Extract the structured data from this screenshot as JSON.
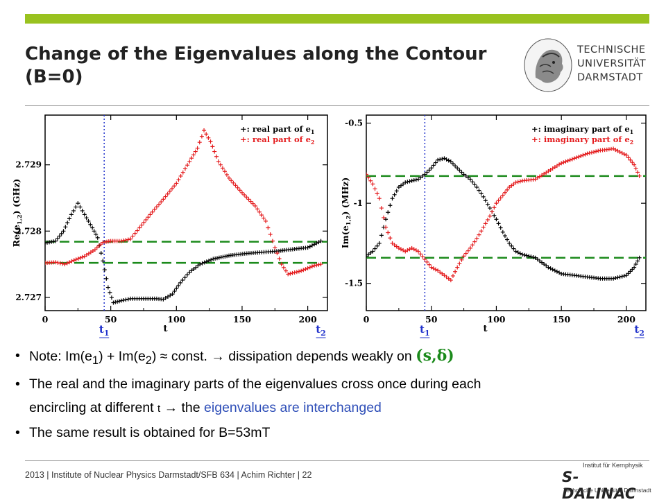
{
  "title": "Change of the Eigenvalues along the Contour (B=0)",
  "logo": {
    "lines": [
      "TECHNISCHE",
      "UNIVERSITÄT",
      "DARMSTADT"
    ]
  },
  "bullets": {
    "b1_prefix": "Note: Im(e",
    "b1_mid": ") + Im(e",
    "b1_after": ") ≈ const. → dissipation depends weakly on ",
    "b1_params": "(s,δ)",
    "b2_text": "The real and the imaginary parts of the eigenvalues cross once during each",
    "b2_line2": "encircling at different ",
    "b2_t": "t",
    "b2_arrow": " → the ",
    "b2_blue": "eigenvalues are interchanged",
    "b3_text": "The same result is obtained for B=53mT",
    "sub1": "1",
    "sub2": "2"
  },
  "footer": {
    "text": "2013  |  Institute of Nuclear Physics Darmstadt/SFB 634  |  Achim Richter  |  22",
    "logo_inst": "Institut für Kernphysik",
    "logo_name": "S-DALINAC",
    "logo_tud": "Technische Universität Darmstadt"
  },
  "chart_data": [
    {
      "type": "scatter",
      "ylabel": "Re(e1,2) (GHz)",
      "xlabel": "t",
      "xlim": [
        0,
        215
      ],
      "ylim": [
        2.7268,
        2.72975
      ],
      "xticks": [
        0,
        50,
        100,
        150,
        200
      ],
      "yticks": [
        2.727,
        2.728,
        2.729
      ],
      "markers": {
        "t1": 45,
        "t2": 210,
        "t1_label": "t1",
        "t2_label": "t2"
      },
      "hlines": [
        2.72784,
        2.72752
      ],
      "legend": [
        "+: real part of e1",
        "+: real part of e2"
      ],
      "series": [
        {
          "color": "#000000",
          "points": [
            [
              0,
              2.72782
            ],
            [
              8,
              2.72785
            ],
            [
              14,
              2.728
            ],
            [
              20,
              2.72825
            ],
            [
              25,
              2.72842
            ],
            [
              30,
              2.72825
            ],
            [
              36,
              2.72805
            ],
            [
              40,
              2.7279
            ],
            [
              44,
              2.72755
            ],
            [
              48,
              2.72715
            ],
            [
              52,
              2.72692
            ],
            [
              58,
              2.72695
            ],
            [
              65,
              2.72698
            ],
            [
              75,
              2.72698
            ],
            [
              85,
              2.72698
            ],
            [
              90,
              2.72697
            ],
            [
              97,
              2.72705
            ],
            [
              103,
              2.72722
            ],
            [
              110,
              2.72738
            ],
            [
              118,
              2.7275
            ],
            [
              128,
              2.72758
            ],
            [
              140,
              2.72763
            ],
            [
              152,
              2.72766
            ],
            [
              165,
              2.72768
            ],
            [
              178,
              2.7277
            ],
            [
              190,
              2.72773
            ],
            [
              200,
              2.72775
            ],
            [
              210,
              2.72785
            ]
          ]
        },
        {
          "color": "#e41a1c",
          "points": [
            [
              0,
              2.72752
            ],
            [
              8,
              2.72753
            ],
            [
              15,
              2.7275
            ],
            [
              22,
              2.72756
            ],
            [
              30,
              2.72762
            ],
            [
              38,
              2.72772
            ],
            [
              44,
              2.72783
            ],
            [
              50,
              2.72785
            ],
            [
              58,
              2.72785
            ],
            [
              65,
              2.72788
            ],
            [
              72,
              2.72805
            ],
            [
              80,
              2.72825
            ],
            [
              90,
              2.72848
            ],
            [
              100,
              2.72872
            ],
            [
              110,
              2.72905
            ],
            [
              116,
              2.72925
            ],
            [
              121,
              2.72952
            ],
            [
              126,
              2.72935
            ],
            [
              132,
              2.72905
            ],
            [
              140,
              2.7288
            ],
            [
              150,
              2.72858
            ],
            [
              160,
              2.72838
            ],
            [
              168,
              2.72815
            ],
            [
              175,
              2.72775
            ],
            [
              180,
              2.7275
            ],
            [
              185,
              2.72735
            ],
            [
              195,
              2.7274
            ],
            [
              205,
              2.72748
            ],
            [
              210,
              2.7275
            ]
          ]
        }
      ]
    },
    {
      "type": "scatter",
      "ylabel": "Im(e1,2) (MHz)",
      "xlabel": "t",
      "xlim": [
        0,
        215
      ],
      "ylim": [
        -1.67,
        -0.45
      ],
      "xticks": [
        0,
        50,
        100,
        150,
        200
      ],
      "yticks": [
        -0.5,
        -1,
        -1.5
      ],
      "markers": {
        "t1": 45,
        "t2": 210,
        "t1_label": "t1",
        "t2_label": "t2"
      },
      "hlines": [
        -0.83,
        -1.34
      ],
      "legend": [
        "+: imaginary part of e1",
        "+: imaginary part of e2"
      ],
      "series": [
        {
          "color": "#000000",
          "points": [
            [
              0,
              -1.33
            ],
            [
              5,
              -1.3
            ],
            [
              10,
              -1.25
            ],
            [
              15,
              -1.1
            ],
            [
              20,
              -0.97
            ],
            [
              25,
              -0.9
            ],
            [
              30,
              -0.87
            ],
            [
              35,
              -0.86
            ],
            [
              40,
              -0.85
            ],
            [
              45,
              -0.82
            ],
            [
              50,
              -0.78
            ],
            [
              55,
              -0.73
            ],
            [
              60,
              -0.72
            ],
            [
              65,
              -0.74
            ],
            [
              70,
              -0.78
            ],
            [
              75,
              -0.82
            ],
            [
              80,
              -0.85
            ],
            [
              85,
              -0.9
            ],
            [
              90,
              -0.96
            ],
            [
              95,
              -1.03
            ],
            [
              100,
              -1.1
            ],
            [
              105,
              -1.18
            ],
            [
              110,
              -1.25
            ],
            [
              115,
              -1.3
            ],
            [
              120,
              -1.32
            ],
            [
              130,
              -1.34
            ],
            [
              140,
              -1.4
            ],
            [
              150,
              -1.44
            ],
            [
              160,
              -1.45
            ],
            [
              170,
              -1.46
            ],
            [
              180,
              -1.47
            ],
            [
              190,
              -1.47
            ],
            [
              200,
              -1.45
            ],
            [
              206,
              -1.4
            ],
            [
              210,
              -1.34
            ]
          ]
        },
        {
          "color": "#e41a1c",
          "points": [
            [
              0,
              -0.82
            ],
            [
              5,
              -0.88
            ],
            [
              10,
              -0.97
            ],
            [
              15,
              -1.15
            ],
            [
              20,
              -1.25
            ],
            [
              25,
              -1.28
            ],
            [
              30,
              -1.3
            ],
            [
              35,
              -1.28
            ],
            [
              40,
              -1.3
            ],
            [
              45,
              -1.35
            ],
            [
              50,
              -1.4
            ],
            [
              55,
              -1.42
            ],
            [
              60,
              -1.45
            ],
            [
              65,
              -1.48
            ],
            [
              70,
              -1.4
            ],
            [
              75,
              -1.33
            ],
            [
              80,
              -1.28
            ],
            [
              85,
              -1.22
            ],
            [
              90,
              -1.15
            ],
            [
              95,
              -1.08
            ],
            [
              100,
              -1.0
            ],
            [
              105,
              -0.95
            ],
            [
              110,
              -0.9
            ],
            [
              115,
              -0.87
            ],
            [
              120,
              -0.86
            ],
            [
              130,
              -0.85
            ],
            [
              140,
              -0.8
            ],
            [
              150,
              -0.75
            ],
            [
              160,
              -0.72
            ],
            [
              170,
              -0.69
            ],
            [
              180,
              -0.67
            ],
            [
              190,
              -0.66
            ],
            [
              200,
              -0.7
            ],
            [
              206,
              -0.76
            ],
            [
              210,
              -0.83
            ]
          ]
        }
      ]
    }
  ]
}
